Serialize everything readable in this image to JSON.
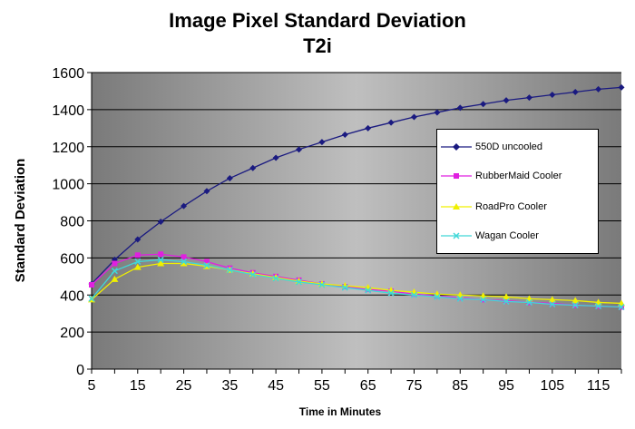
{
  "chart_data": {
    "type": "line",
    "title": "Image Pixel Standard Deviation",
    "subtitle": "T2i",
    "xlabel": "Time in Minutes",
    "ylabel": "Standard Deviation",
    "xlim": [
      5,
      120
    ],
    "ylim": [
      0,
      1600
    ],
    "x_ticks": [
      5,
      15,
      25,
      35,
      45,
      55,
      65,
      75,
      85,
      95,
      105,
      115
    ],
    "y_ticks": [
      0,
      200,
      400,
      600,
      800,
      1000,
      1200,
      1400,
      1600
    ],
    "grid": true,
    "legend_position": "right",
    "x": [
      5,
      10,
      15,
      20,
      25,
      30,
      35,
      40,
      45,
      50,
      55,
      60,
      65,
      70,
      75,
      80,
      85,
      90,
      95,
      100,
      105,
      110,
      115,
      120
    ],
    "series": [
      {
        "name": "550D uncooled",
        "color": "#1a1a80",
        "marker": "diamond",
        "values": [
          460,
          590,
          700,
          795,
          880,
          960,
          1030,
          1085,
          1140,
          1185,
          1225,
          1265,
          1300,
          1330,
          1360,
          1385,
          1410,
          1430,
          1450,
          1465,
          1480,
          1495,
          1510,
          1520
        ]
      },
      {
        "name": "RubberMaid Cooler",
        "color": "#e020e0",
        "marker": "square",
        "values": [
          455,
          570,
          615,
          620,
          605,
          580,
          545,
          520,
          500,
          480,
          460,
          445,
          430,
          420,
          405,
          395,
          385,
          375,
          370,
          360,
          355,
          345,
          340,
          335
        ]
      },
      {
        "name": "RoadPro Cooler",
        "color": "#f0f000",
        "marker": "triangle",
        "values": [
          375,
          485,
          550,
          570,
          570,
          555,
          535,
          515,
          495,
          475,
          460,
          450,
          440,
          425,
          415,
          405,
          400,
          395,
          390,
          380,
          375,
          370,
          360,
          355
        ]
      },
      {
        "name": "Wagan Cooler",
        "color": "#40d8d8",
        "marker": "x",
        "values": [
          380,
          530,
          580,
          590,
          580,
          560,
          535,
          510,
          490,
          470,
          455,
          440,
          425,
          410,
          400,
          390,
          380,
          375,
          365,
          360,
          350,
          345,
          340,
          335
        ]
      }
    ]
  }
}
